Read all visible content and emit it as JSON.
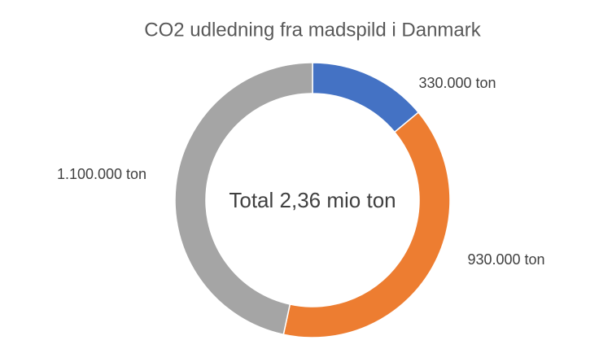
{
  "chart_data": {
    "type": "donut",
    "title": "CO2 udledning fra madspild i Danmark",
    "values": [
      330000,
      930000,
      1100000
    ],
    "value_labels": [
      "330.000 ton",
      "930.000 ton",
      "1.100.000 ton"
    ],
    "colors": [
      "#4472c4",
      "#ed7d31",
      "#a5a5a5"
    ],
    "annotation": "Total 2,36 mio ton"
  }
}
